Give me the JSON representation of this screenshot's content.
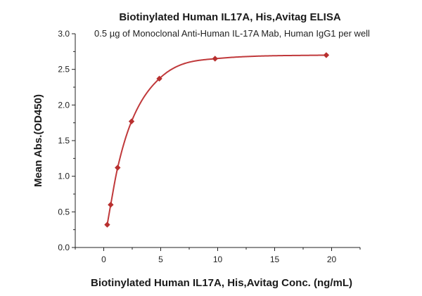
{
  "chart_data": {
    "type": "scatter",
    "title": "Biotinylated Human IL17A, His,Avitag ELISA",
    "subtitle": "0.5 µg of Monoclonal Anti-Human IL-17A Mab, Human IgG1 per well",
    "xlabel": "Biotinylated Human IL17A, His,Avitag Conc. (ng/mL)",
    "ylabel": "Mean Abs.(OD450)",
    "xlim": [
      -2.5,
      22.5
    ],
    "ylim": [
      0.0,
      3.0
    ],
    "x_ticks": [
      0,
      5,
      10,
      15,
      20
    ],
    "x_tick_labels": [
      "0",
      "5",
      "10",
      "15",
      "20"
    ],
    "y_ticks": [
      0.0,
      0.5,
      1.0,
      1.5,
      2.0,
      2.5,
      3.0
    ],
    "y_tick_labels": [
      "0.0",
      "0.5",
      "1.0",
      "1.5",
      "2.0",
      "2.5",
      "3.0"
    ],
    "grid": false,
    "series": [
      {
        "marker": "diamond",
        "color": "#b8302f",
        "x": [
          0.305,
          0.61,
          1.22,
          2.44,
          4.88,
          9.77,
          19.53
        ],
        "y": [
          0.32,
          0.6,
          1.12,
          1.77,
          2.37,
          2.65,
          2.7
        ]
      }
    ],
    "fit_curve": {
      "color": "#c0393b"
    }
  }
}
